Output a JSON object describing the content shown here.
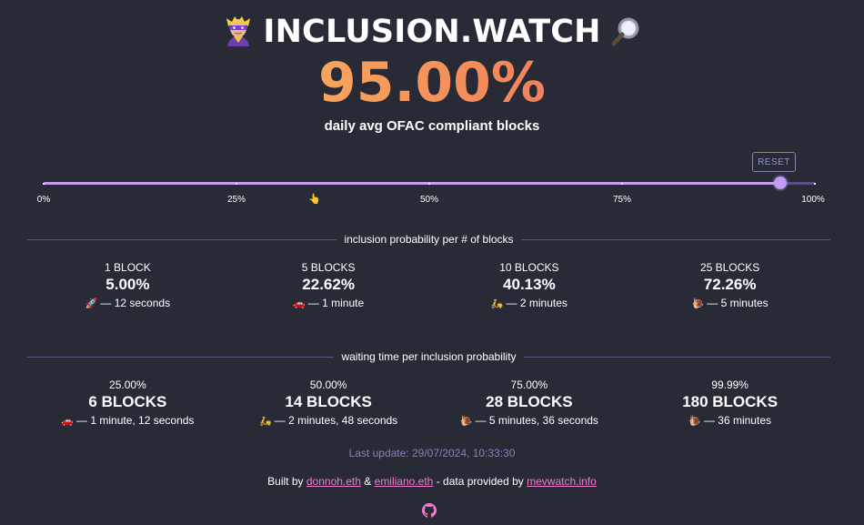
{
  "header": {
    "title": "INCLUSION.WATCH",
    "left_icon": "masked-hero-icon",
    "right_icon": "magnifying-glass-icon"
  },
  "headline": {
    "value": "95.00%",
    "caption": "daily avg OFAC compliant blocks",
    "gradient_colors": [
      "#fcd85a",
      "#f59a5b",
      "#ea4f62"
    ]
  },
  "slider": {
    "reset_label": "RESET",
    "value_fraction": 0.95,
    "ticks": [
      "0%",
      "25%",
      "50%",
      "75%",
      "100%"
    ],
    "pointer_icon": "pointing-down-hand-icon",
    "accent_color": "#c29cf6"
  },
  "sections": {
    "inclusion": {
      "title": "inclusion probability per # of blocks",
      "items": [
        {
          "blocks": "1 BLOCK",
          "probability": "5.00%",
          "icon": "rocket-icon",
          "time": "— 12 seconds"
        },
        {
          "blocks": "5 BLOCKS",
          "probability": "22.62%",
          "icon": "car-icon",
          "time": "— 1 minute"
        },
        {
          "blocks": "10 BLOCKS",
          "probability": "40.13%",
          "icon": "scooter-icon",
          "time": "— 2 minutes"
        },
        {
          "blocks": "25 BLOCKS",
          "probability": "72.26%",
          "icon": "snail-icon",
          "time": "— 5 minutes"
        }
      ]
    },
    "waiting": {
      "title": "waiting time per inclusion probability",
      "items": [
        {
          "probability": "25.00%",
          "blocks": "6 BLOCKS",
          "icon": "car-icon",
          "time": "— 1 minute, 12 seconds"
        },
        {
          "probability": "50.00%",
          "blocks": "14 BLOCKS",
          "icon": "scooter-icon",
          "time": "— 2 minutes, 48 seconds"
        },
        {
          "probability": "75.00%",
          "blocks": "28 BLOCKS",
          "icon": "snail-icon",
          "time": "— 5 minutes, 36 seconds"
        },
        {
          "probability": "99.99%",
          "blocks": "180 BLOCKS",
          "icon": "snail-icon",
          "time": "— 36 minutes"
        }
      ]
    }
  },
  "status": {
    "last_update": "Last update: 29/07/2024, 10:33:30"
  },
  "footer": {
    "built_by": "Built by",
    "author1": "donnoh.eth",
    "and": "&",
    "author2": "emiliano.eth",
    "data_text": "- data provided by",
    "source": "mevwatch.info",
    "link_color": "#f27bd0",
    "github_icon": "github-icon"
  }
}
